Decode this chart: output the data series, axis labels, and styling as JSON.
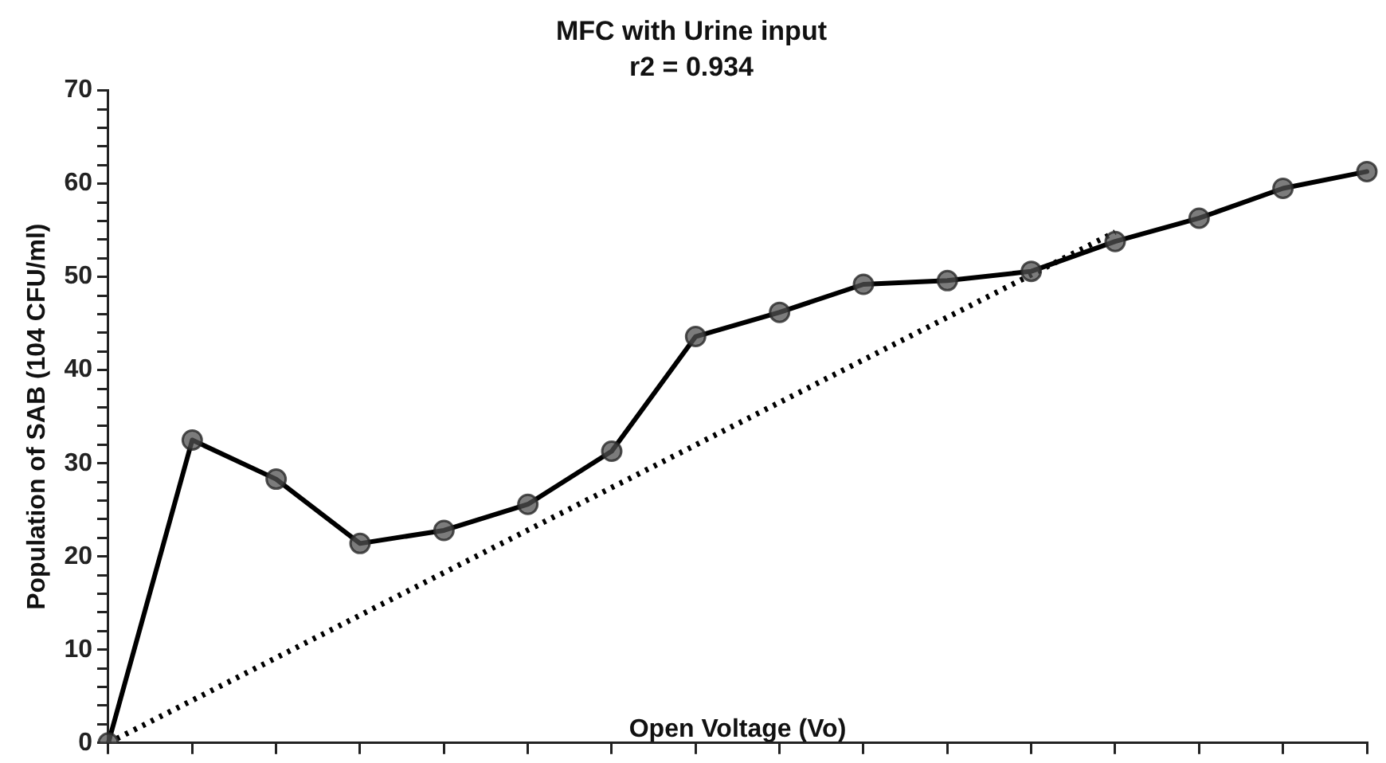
{
  "chart_data": {
    "type": "line",
    "title": "MFC with Urine input",
    "subtitle": "r2 = 0.934",
    "xlabel": "Open Voltage (Vo)",
    "ylabel": "Population of SAB (104 CFU/ml)",
    "categories": [
      null,
      null,
      null,
      null,
      null,
      null,
      null,
      null,
      null,
      null,
      null,
      null,
      null,
      null,
      null,
      null
    ],
    "ylim": [
      0,
      70
    ],
    "yticks": [
      0,
      {
        "value": 2,
        "label": null
      },
      {
        "value": 4,
        "label": null
      },
      {
        "value": 6,
        "label": null
      },
      {
        "value": 8,
        "label": null
      },
      10,
      {
        "value": 12,
        "label": null
      },
      {
        "value": 14,
        "label": null
      },
      {
        "value": 16,
        "label": null
      },
      {
        "value": 18,
        "label": null
      },
      20,
      {
        "value": 22,
        "label": null
      },
      {
        "value": 24,
        "label": null
      },
      {
        "value": 26,
        "label": null
      },
      {
        "value": 28,
        "label": null
      },
      30,
      {
        "value": 32,
        "label": null
      },
      {
        "value": 34,
        "label": null
      },
      {
        "value": 36,
        "label": null
      },
      {
        "value": 38,
        "label": null
      },
      40,
      {
        "value": 42,
        "label": null
      },
      {
        "value": 44,
        "label": null
      },
      {
        "value": 46,
        "label": null
      },
      {
        "value": 48,
        "label": null
      },
      50,
      {
        "value": 52,
        "label": null
      },
      {
        "value": 54,
        "label": null
      },
      {
        "value": 56,
        "label": null
      },
      {
        "value": 58,
        "label": null
      },
      60,
      {
        "value": 62,
        "label": null
      },
      {
        "value": 64,
        "label": null
      },
      {
        "value": 66,
        "label": null
      },
      {
        "value": 68,
        "label": null
      },
      70
    ],
    "tick_labels": "y",
    "grid": false,
    "legend": false,
    "series": [
      {
        "type": "line",
        "color": "#000000",
        "marker": "circle",
        "line_style": "solid",
        "values": [
          0,
          32.5,
          28.3,
          21.4,
          22.8,
          25.6,
          31.3,
          43.6,
          46.2,
          49.2,
          49.6,
          50.6,
          53.8,
          56.3,
          59.5,
          61.3
        ]
      },
      {
        "type": "line",
        "color": "#000000",
        "line_style": "dotted",
        "values": [
          0,
          null,
          null,
          null,
          null,
          null,
          null,
          null,
          null,
          null,
          null,
          null,
          54.8,
          null,
          null,
          null
        ]
      }
    ]
  }
}
